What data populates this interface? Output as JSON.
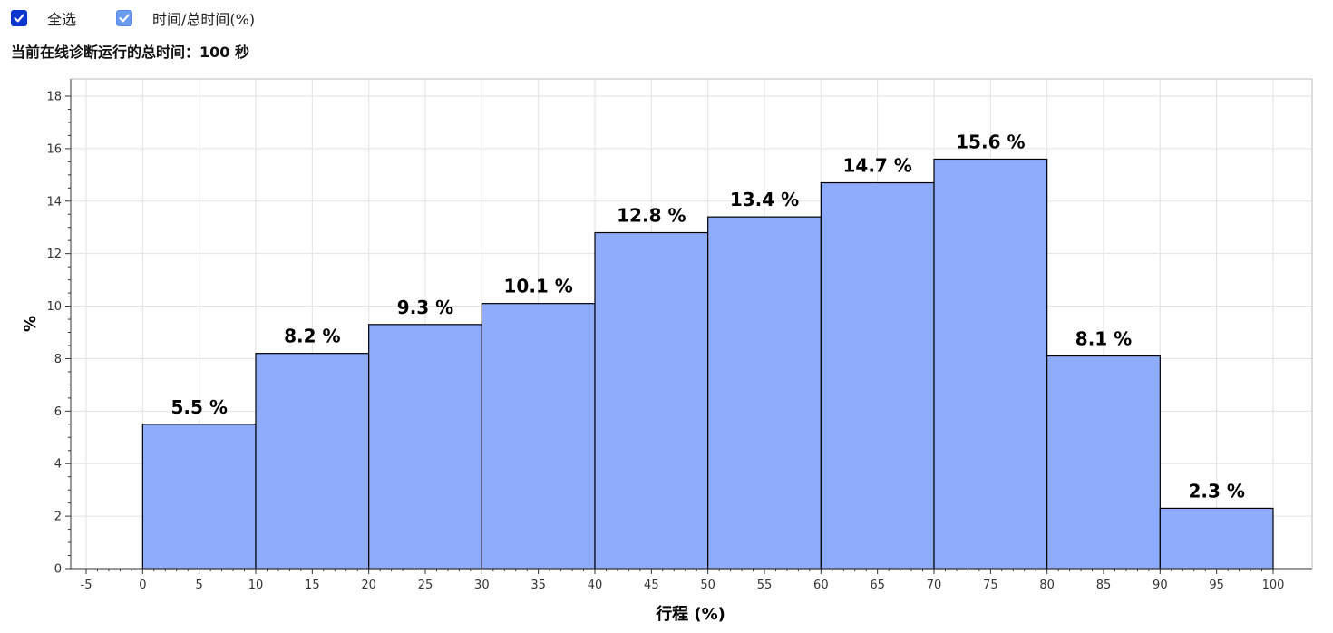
{
  "controls": {
    "select_all_label": "全选",
    "series_label": "时间/总时间(%)"
  },
  "summary_text": "当前在线诊断运行的总时间：100 秒",
  "colors": {
    "bar_fill": "#8fabfb",
    "bar_stroke": "#000000",
    "checkbox_dark": "#0b35cf",
    "checkbox_light": "#6a9bf0"
  },
  "chart_data": {
    "type": "bar",
    "xlabel": "行程 (%)",
    "ylabel": "%",
    "xlim": [
      -5,
      100
    ],
    "ylim": [
      0,
      18
    ],
    "grid": true,
    "x_ticks": [
      -5,
      0,
      5,
      10,
      15,
      20,
      25,
      30,
      35,
      40,
      45,
      50,
      55,
      60,
      65,
      70,
      75,
      80,
      85,
      90,
      95,
      100
    ],
    "y_ticks": [
      0,
      2,
      4,
      6,
      8,
      10,
      12,
      14,
      16,
      18
    ],
    "bins": [
      {
        "start": 0,
        "end": 10,
        "value": 5.5,
        "label": "5.5 %"
      },
      {
        "start": 10,
        "end": 20,
        "value": 8.2,
        "label": "8.2 %"
      },
      {
        "start": 20,
        "end": 30,
        "value": 9.3,
        "label": "9.3 %"
      },
      {
        "start": 30,
        "end": 40,
        "value": 10.1,
        "label": "10.1 %"
      },
      {
        "start": 40,
        "end": 50,
        "value": 12.8,
        "label": "12.8 %"
      },
      {
        "start": 50,
        "end": 60,
        "value": 13.4,
        "label": "13.4 %"
      },
      {
        "start": 60,
        "end": 70,
        "value": 14.7,
        "label": "14.7 %"
      },
      {
        "start": 70,
        "end": 80,
        "value": 15.6,
        "label": "15.6 %"
      },
      {
        "start": 80,
        "end": 90,
        "value": 8.1,
        "label": "8.1 %"
      },
      {
        "start": 90,
        "end": 100,
        "value": 2.3,
        "label": "2.3 %"
      }
    ]
  }
}
